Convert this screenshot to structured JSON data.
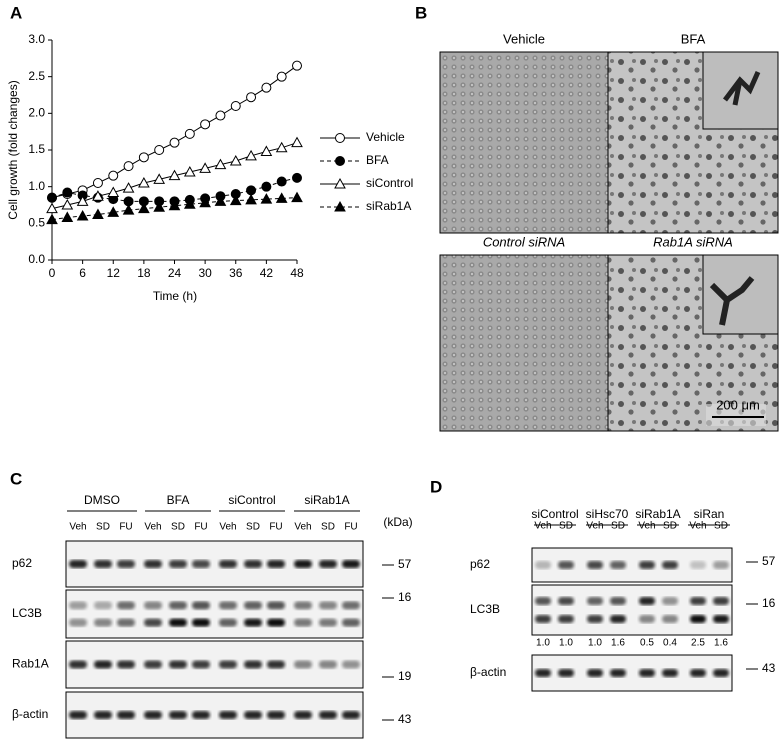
{
  "panels": {
    "a": "A",
    "b": "B",
    "c": "C",
    "d": "D"
  },
  "chart_data": {
    "type": "line",
    "xlabel": "Time (h)",
    "ylabel": "Cell growth (fold changes)",
    "x": [
      0,
      3,
      6,
      9,
      12,
      15,
      18,
      21,
      24,
      27,
      30,
      33,
      36,
      39,
      42,
      45,
      48
    ],
    "series": [
      {
        "name": "Vehicle",
        "color": "#000000",
        "marker": "circle",
        "filled": false,
        "dashed": false,
        "values": [
          0.85,
          0.9,
          0.95,
          1.05,
          1.15,
          1.28,
          1.4,
          1.5,
          1.6,
          1.72,
          1.85,
          1.97,
          2.1,
          2.22,
          2.35,
          2.5,
          2.65
        ]
      },
      {
        "name": "BFA",
        "color": "#000000",
        "marker": "circle",
        "filled": true,
        "dashed": true,
        "values": [
          0.85,
          0.92,
          0.88,
          0.85,
          0.83,
          0.8,
          0.8,
          0.8,
          0.8,
          0.82,
          0.84,
          0.87,
          0.9,
          0.95,
          1.0,
          1.07,
          1.12
        ]
      },
      {
        "name": "siControl",
        "color": "#000000",
        "marker": "triangle",
        "filled": false,
        "dashed": false,
        "values": [
          0.7,
          0.75,
          0.8,
          0.87,
          0.92,
          0.98,
          1.05,
          1.1,
          1.15,
          1.2,
          1.25,
          1.3,
          1.35,
          1.42,
          1.48,
          1.53,
          1.6
        ]
      },
      {
        "name": "siRab1A",
        "color": "#000000",
        "marker": "triangle",
        "filled": true,
        "dashed": true,
        "values": [
          0.55,
          0.58,
          0.6,
          0.62,
          0.65,
          0.68,
          0.7,
          0.72,
          0.74,
          0.76,
          0.78,
          0.8,
          0.81,
          0.82,
          0.83,
          0.84,
          0.85
        ]
      }
    ],
    "xlim": [
      0,
      48
    ],
    "xticks": [
      0,
      6,
      12,
      18,
      24,
      30,
      36,
      42,
      48
    ],
    "ylim": [
      0,
      3
    ],
    "yticks": [
      {
        "value": 0,
        "label": "0.0"
      },
      0.5,
      {
        "value": 1,
        "label": "1.0"
      },
      1.5,
      {
        "value": 2,
        "label": "2.0"
      },
      2.5,
      {
        "value": 3,
        "label": "3.0"
      }
    ],
    "legend": "right"
  },
  "micrographs": {
    "labels": [
      "Vehicle",
      "BFA",
      "Control siRNA",
      "Rab1A siRNA"
    ],
    "scale_bar": "200 μm"
  },
  "blot_c": {
    "groups": [
      "DMSO",
      "BFA",
      "siControl",
      "siRab1A"
    ],
    "lanes": [
      "Veh",
      "SD",
      "FU",
      "Veh",
      "SD",
      "FU",
      "Veh",
      "SD",
      "FU",
      "Veh",
      "SD",
      "FU"
    ],
    "unit": "(kDa)",
    "rows": [
      "p62",
      "LC3B",
      "Rab1A",
      "β-actin"
    ],
    "markers": [
      "57",
      "16",
      "19",
      "43"
    ]
  },
  "blot_d": {
    "groups": [
      "siControl",
      "siHsc70",
      "siRab1A",
      "siRan"
    ],
    "lanes": [
      "Veh",
      "SD",
      "Veh",
      "SD",
      "Veh",
      "SD",
      "Veh",
      "SD"
    ],
    "rows": [
      "p62",
      "LC3B",
      "β-actin"
    ],
    "markers": [
      "57",
      "16",
      "43"
    ],
    "ratios": [
      "1.0",
      "1.0",
      "1.0",
      "1.6",
      "0.5",
      "0.4",
      "2.5",
      "1.6"
    ]
  }
}
